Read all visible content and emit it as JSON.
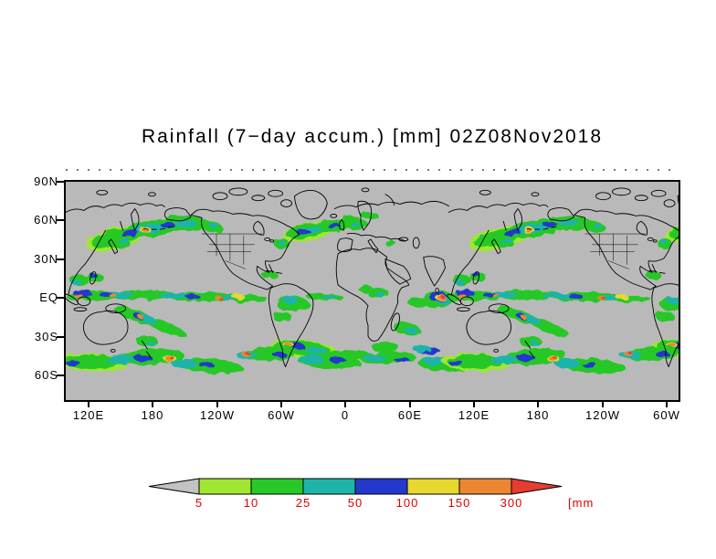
{
  "title": "Rainfall (7−day accum.) [mm] 02Z08Nov2018",
  "map": {
    "y_axis": {
      "labels": [
        "90N",
        "60N",
        "30N",
        "EQ",
        "30S",
        "60S"
      ]
    },
    "x_axis": {
      "labels": [
        "120E",
        "180",
        "120W",
        "60W",
        "0",
        "60E",
        "120E",
        "180",
        "120W",
        "60W"
      ]
    },
    "colors": {
      "background": "#b9b9b9",
      "coastline": "#000000"
    }
  },
  "colorbar": {
    "levels": [
      "5",
      "10",
      "25",
      "50",
      "100",
      "150",
      "300"
    ],
    "unit_label": "[mm]",
    "label_color": "#dd0000",
    "colors": {
      "below": "#c2c2c2",
      "segments": [
        "#a0e632",
        "#28c828",
        "#1fb4aa",
        "#2438cd",
        "#e6d82e",
        "#ec8633"
      ],
      "above": "#e63c32"
    }
  },
  "chart_data": {
    "type": "heatmap",
    "title": "Rainfall (7−day accum.) [mm] 02Z08Nov2018",
    "units": "mm",
    "colorbar_levels_mm": [
      5,
      10,
      25,
      50,
      100,
      150,
      300
    ],
    "x_tick_labels": [
      "120E",
      "180",
      "120W",
      "60W",
      "0",
      "60E",
      "120E",
      "180",
      "120W",
      "60W"
    ],
    "y_tick_labels": [
      "90N",
      "60N",
      "30N",
      "EQ",
      "30S",
      "60S"
    ],
    "legend_position": "bottom"
  }
}
